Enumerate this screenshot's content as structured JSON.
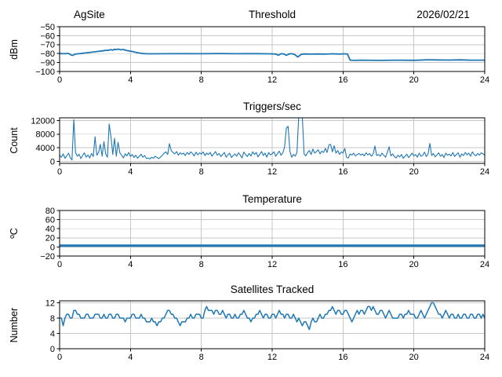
{
  "figure_header": {
    "site_label": "AgSite",
    "date_label": "2026/02/21"
  },
  "chart_data": [
    {
      "name": "threshold",
      "type": "line",
      "title_left": "AgSite",
      "title": "Threshold",
      "title_right": "2026/02/21",
      "ylabel": "dBm",
      "xlabel": "",
      "grid": true,
      "legend": "none",
      "line_color": "#1f77b4",
      "line_width": 1.8,
      "xlim": [
        0,
        24
      ],
      "ylim": [
        -100,
        -50
      ],
      "xticks": [
        0,
        4,
        8,
        12,
        16,
        20,
        24
      ],
      "xtick_labels": [
        "0",
        "4",
        "8",
        "12",
        "16",
        "20",
        "24"
      ],
      "yticks": [
        -50,
        -60,
        -70,
        -80,
        -90,
        -100
      ],
      "ytick_labels": [
        "−50",
        "−60",
        "−70",
        "−80",
        "−90",
        "−100"
      ],
      "points": [
        [
          0,
          -80
        ],
        [
          0.3,
          -80.2
        ],
        [
          0.5,
          -79.8
        ],
        [
          0.65,
          -81.6
        ],
        [
          0.75,
          -82
        ],
        [
          0.85,
          -80.8
        ],
        [
          1,
          -80.3
        ],
        [
          1.2,
          -80
        ],
        [
          1.5,
          -79.2
        ],
        [
          1.8,
          -78.5
        ],
        [
          2.1,
          -77.7
        ],
        [
          2.4,
          -77
        ],
        [
          2.6,
          -76.5
        ],
        [
          2.8,
          -76.1
        ],
        [
          2.9,
          -75.6
        ],
        [
          3,
          -76.2
        ],
        [
          3.1,
          -75.2
        ],
        [
          3.2,
          -75.6
        ],
        [
          3.3,
          -75
        ],
        [
          3.45,
          -75.8
        ],
        [
          3.6,
          -75.4
        ],
        [
          3.75,
          -76.4
        ],
        [
          3.9,
          -77
        ],
        [
          4.1,
          -77.6
        ],
        [
          4.3,
          -78.6
        ],
        [
          4.5,
          -79.4
        ],
        [
          4.7,
          -80
        ],
        [
          5,
          -80.3
        ],
        [
          6,
          -80.2
        ],
        [
          7,
          -80.1
        ],
        [
          8,
          -80.2
        ],
        [
          9,
          -80
        ],
        [
          10,
          -80.2
        ],
        [
          11,
          -80.1
        ],
        [
          11.8,
          -80.3
        ],
        [
          12.2,
          -80.5
        ],
        [
          12.35,
          -81.8
        ],
        [
          12.5,
          -80.2
        ],
        [
          12.65,
          -80.4
        ],
        [
          12.8,
          -82
        ],
        [
          12.95,
          -80.4
        ],
        [
          13.1,
          -80.2
        ],
        [
          13.25,
          -80.8
        ],
        [
          13.45,
          -83.8
        ],
        [
          13.65,
          -80.8
        ],
        [
          13.8,
          -80.4
        ],
        [
          14.2,
          -80.6
        ],
        [
          14.6,
          -80.4
        ],
        [
          15,
          -80.6
        ],
        [
          15.4,
          -80.3
        ],
        [
          15.8,
          -80.5
        ],
        [
          16.1,
          -80.3
        ],
        [
          16.25,
          -80.5
        ],
        [
          16.4,
          -87.4
        ],
        [
          16.7,
          -87.6
        ],
        [
          17,
          -87.4
        ],
        [
          18,
          -87.6
        ],
        [
          19,
          -87.4
        ],
        [
          20,
          -87.5
        ],
        [
          20.8,
          -86.9
        ],
        [
          21.2,
          -87.1
        ],
        [
          22,
          -87.3
        ],
        [
          22.6,
          -87
        ],
        [
          23.2,
          -87.4
        ],
        [
          24,
          -87.4
        ]
      ]
    },
    {
      "name": "triggers",
      "type": "line",
      "title": "Triggers/sec",
      "ylabel": "Count",
      "xlabel": "",
      "grid": true,
      "legend": "none",
      "line_color": "#1f77b4",
      "line_width": 1.1,
      "xlim": [
        0,
        24
      ],
      "ylim": [
        -600,
        12800
      ],
      "xticks": [
        0,
        4,
        8,
        12,
        16,
        20,
        24
      ],
      "xtick_labels": [
        "0",
        "4",
        "8",
        "12",
        "16",
        "20",
        "24"
      ],
      "yticks": [
        12000,
        8000,
        4000,
        0
      ],
      "ytick_labels": [
        "12000",
        "8000",
        "4000",
        "0"
      ],
      "x_start": 0,
      "x_step": 0.1,
      "values": [
        1800,
        1200,
        2200,
        900,
        1600,
        2400,
        1100,
        400,
        12300,
        2600,
        1500,
        2100,
        800,
        1700,
        2500,
        1200,
        1900,
        1000,
        2300,
        1400,
        7200,
        1800,
        2600,
        5000,
        1500,
        5800,
        2200,
        1200,
        11000,
        7200,
        2000,
        6800,
        1500,
        5600,
        2500,
        1800,
        1000,
        2200,
        1600,
        2600,
        1400,
        2000,
        1100,
        1800,
        900,
        1500,
        2100,
        1200,
        1700,
        800,
        1000,
        700,
        1200,
        900,
        1500,
        1100,
        800,
        1300,
        1800,
        2400,
        2800,
        2000,
        5200,
        3200,
        2600,
        2200,
        2900,
        1800,
        2500,
        2100,
        2400,
        1700,
        2600,
        2000,
        2800,
        2300,
        1600,
        2700,
        1900,
        2500,
        2100,
        2800,
        1700,
        2400,
        2000,
        2600,
        1500,
        2200,
        2900,
        1800,
        2300,
        1400,
        2000,
        2600,
        1200,
        1900,
        2400,
        1100,
        1700,
        2200,
        1500,
        2500,
        1800,
        1000,
        2700,
        2000,
        1400,
        2300,
        1600,
        2800,
        2000,
        2600,
        1300,
        2100,
        2900,
        1700,
        2400,
        1200,
        2600,
        1900,
        2200,
        2800,
        1500,
        2300,
        3000,
        1800,
        2500,
        4200,
        9800,
        10300,
        3000,
        1200,
        2000,
        1500,
        2600,
        13500,
        14000,
        13200,
        2200,
        1600,
        2600,
        3200,
        2000,
        3600,
        2400,
        2900,
        3400,
        2200,
        3000,
        2600,
        3800,
        2600,
        4800,
        5000,
        2800,
        4600,
        2400,
        3200,
        2000,
        2800,
        2400,
        3800,
        1200,
        1000,
        2200,
        1800,
        2400,
        1600,
        2000,
        2300,
        1800,
        2200,
        1600,
        2500,
        1900,
        2300,
        1500,
        2100,
        4500,
        1700,
        2000,
        1500,
        2400,
        1800,
        1200,
        2600,
        4300,
        1600,
        2200,
        1400,
        1000,
        1800,
        1300,
        2000,
        900,
        1500,
        2100,
        1100,
        1700,
        2400,
        1600,
        2000,
        1200,
        2400,
        1500,
        1800,
        2700,
        1400,
        2100,
        5300,
        1700,
        2300,
        1300,
        1900,
        2500,
        1500,
        2000,
        1100,
        2400,
        1800,
        2100,
        1600,
        2600,
        1400,
        2000,
        2500,
        1200,
        2200,
        1700,
        2600,
        1900,
        2400,
        1500,
        2800,
        2000,
        1600,
        2300,
        1800,
        2500,
        2200,
        1800
      ]
    },
    {
      "name": "temperature",
      "type": "line",
      "title": "Temperature",
      "ylabel": "ºC",
      "xlabel": "",
      "grid": true,
      "legend": "none",
      "line_color": "#1f77b4",
      "line_width": 3,
      "xlim": [
        0,
        24
      ],
      "ylim": [
        -20,
        80
      ],
      "xticks": [
        0,
        4,
        8,
        12,
        16,
        20,
        24
      ],
      "xtick_labels": [
        "0",
        "4",
        "8",
        "12",
        "16",
        "20",
        "24"
      ],
      "yticks": [
        80,
        60,
        40,
        20,
        0,
        -20
      ],
      "ytick_labels": [
        "80",
        "60",
        "40",
        "20",
        "0",
        "−20"
      ],
      "points": [
        [
          0,
          3
        ],
        [
          24,
          3
        ]
      ]
    },
    {
      "name": "satellites",
      "type": "line",
      "title": "Satellites Tracked",
      "ylabel": "Number",
      "xlabel": "",
      "grid": true,
      "legend": "none",
      "line_color": "#1f77b4",
      "line_width": 1.5,
      "xlim": [
        0,
        24
      ],
      "ylim": [
        0,
        12.5
      ],
      "xticks": [
        0,
        4,
        8,
        12,
        16,
        20,
        24
      ],
      "xtick_labels": [
        "0",
        "4",
        "8",
        "12",
        "16",
        "20",
        "24"
      ],
      "yticks": [
        12,
        8,
        4,
        0
      ],
      "ytick_labels": [
        "12",
        "8",
        "4",
        "0"
      ],
      "x_start": 0,
      "x_step": 0.1,
      "values": [
        8,
        8,
        6,
        8,
        9,
        9,
        8,
        8,
        10,
        10,
        9,
        9,
        8,
        8,
        8,
        9,
        9,
        8,
        8,
        8,
        9,
        9,
        9,
        8,
        8,
        9,
        8,
        8,
        9,
        9,
        8,
        8,
        9,
        9,
        8,
        8,
        8,
        7,
        8,
        8,
        8,
        9,
        9,
        8,
        8,
        8,
        9,
        8,
        8,
        7,
        7,
        7,
        8,
        7,
        7,
        6,
        7,
        7,
        8,
        8,
        9,
        10,
        10,
        9,
        9,
        8,
        8,
        7,
        6,
        7,
        7,
        7,
        8,
        8,
        9,
        8,
        8,
        9,
        9,
        9,
        8,
        8,
        10,
        11,
        10,
        10,
        10,
        9,
        10,
        10,
        9,
        9,
        10,
        9,
        8,
        9,
        9,
        8,
        8,
        9,
        8,
        8,
        9,
        9,
        10,
        9,
        8,
        8,
        7,
        8,
        8,
        9,
        9,
        10,
        9,
        8,
        9,
        9,
        8,
        8,
        9,
        9,
        8,
        9,
        10,
        9,
        9,
        8,
        9,
        9,
        8,
        8,
        9,
        8,
        7,
        8,
        7,
        6,
        7,
        7,
        6,
        5,
        7,
        8,
        7,
        7,
        8,
        9,
        8,
        8,
        9,
        9,
        10,
        10,
        11,
        10,
        9,
        10,
        10,
        9,
        9,
        10,
        10,
        9,
        8,
        7,
        8,
        9,
        10,
        9,
        10,
        10,
        9,
        10,
        11,
        11,
        10,
        11,
        10,
        9,
        9,
        10,
        10,
        9,
        8,
        9,
        10,
        9,
        8,
        8,
        8,
        8,
        9,
        9,
        8,
        9,
        9,
        10,
        9,
        9,
        9,
        8,
        8,
        9,
        10,
        9,
        8,
        9,
        10,
        11,
        12,
        12,
        11,
        10,
        9,
        9,
        8,
        9,
        10,
        9,
        8,
        9,
        9,
        8,
        8,
        9,
        8,
        8,
        9,
        9,
        8,
        8,
        9,
        9,
        8,
        8,
        9,
        9,
        8,
        9,
        8
      ]
    }
  ]
}
